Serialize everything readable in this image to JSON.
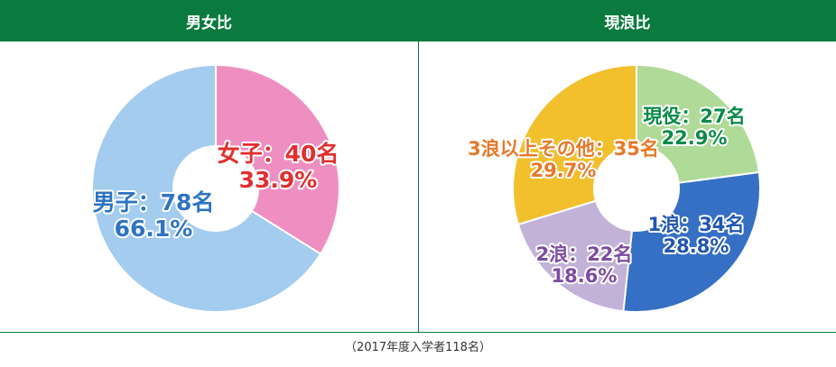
{
  "chart_data": [
    {
      "type": "pie",
      "title": "男女比",
      "slices": [
        {
          "name": "女子",
          "count": "40名",
          "value": 33.9,
          "value_label": "33.9%",
          "color": "#ef8fc1",
          "label_color": "#e0302e"
        },
        {
          "name": "男子",
          "count": "78名",
          "value": 66.1,
          "value_label": "66.1%",
          "color": "#a3ccef",
          "label_color": "#2f74c0"
        }
      ]
    },
    {
      "type": "pie",
      "title": "現浪比",
      "slices": [
        {
          "name": "現役",
          "count": "27名",
          "value": 22.9,
          "value_label": "22.9%",
          "color": "#b0da98",
          "label_color": "#0a8a48"
        },
        {
          "name": "1浪",
          "count": "34名",
          "value": 28.8,
          "value_label": "28.8%",
          "color": "#3570c4",
          "label_color": "#1f56b0"
        },
        {
          "name": "2浪",
          "count": "22名",
          "value": 18.6,
          "value_label": "18.6%",
          "color": "#c2b2d8",
          "label_color": "#7d4ba0"
        },
        {
          "name": "3浪以上その他",
          "count": "35名",
          "value": 29.7,
          "value_label": "29.7%",
          "color": "#f2c02d",
          "label_color": "#e8782a"
        }
      ]
    }
  ],
  "footnote": "（2017年度入学者118名）",
  "colors": {
    "header_bg": "#0a7a3e",
    "header_text": "#ffffff"
  }
}
